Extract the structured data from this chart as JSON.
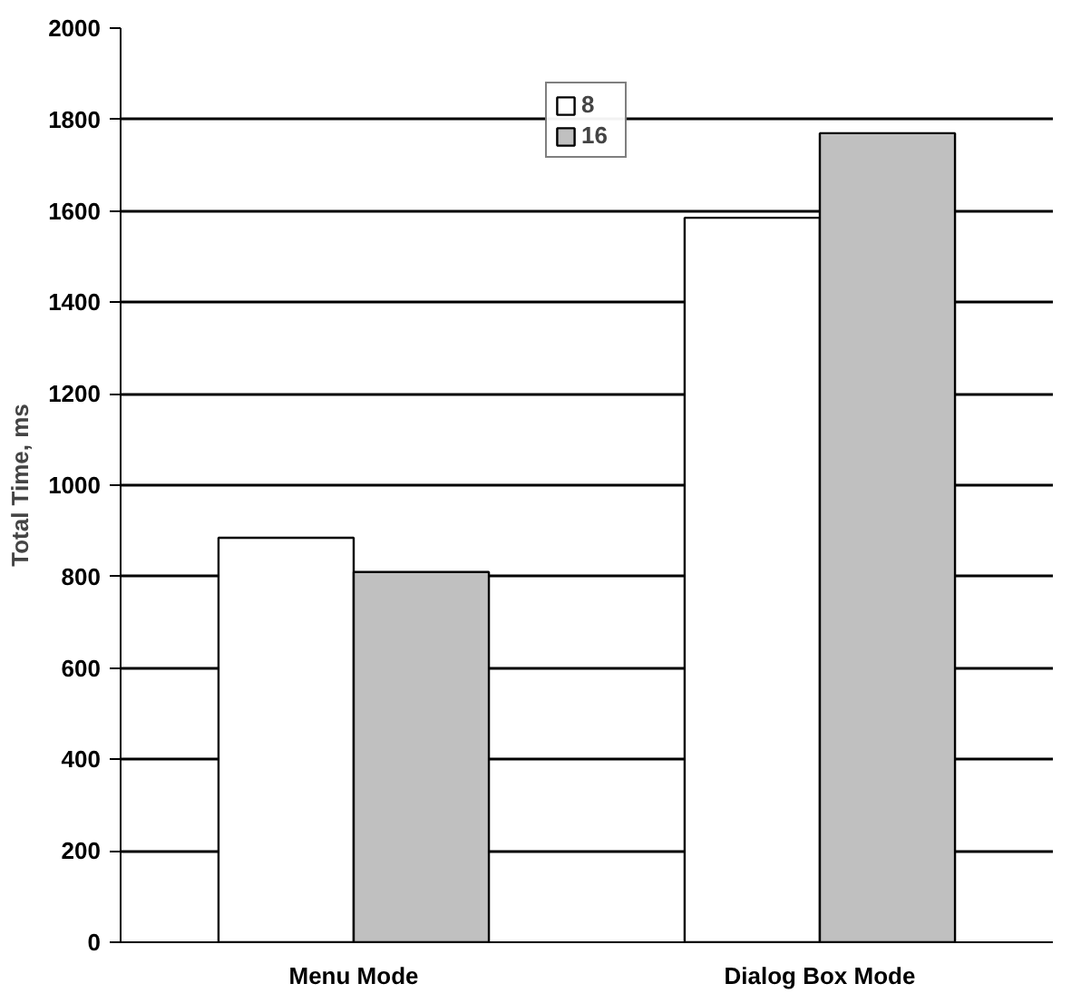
{
  "chart_data": {
    "type": "bar",
    "ylabel": "Total Time, ms",
    "categories": [
      "Menu Mode",
      "Dialog Box Mode"
    ],
    "series": [
      {
        "name": "8",
        "color": "#ffffff",
        "values": [
          885,
          1585
        ]
      },
      {
        "name": "16",
        "color": "#c0c0c0",
        "values": [
          810,
          1770
        ]
      }
    ],
    "ylim": [
      0,
      2000
    ],
    "yticks": [
      0,
      200,
      400,
      600,
      800,
      1000,
      1200,
      1400,
      1600,
      1800,
      2000
    ],
    "grid": "y",
    "legend": "top"
  }
}
